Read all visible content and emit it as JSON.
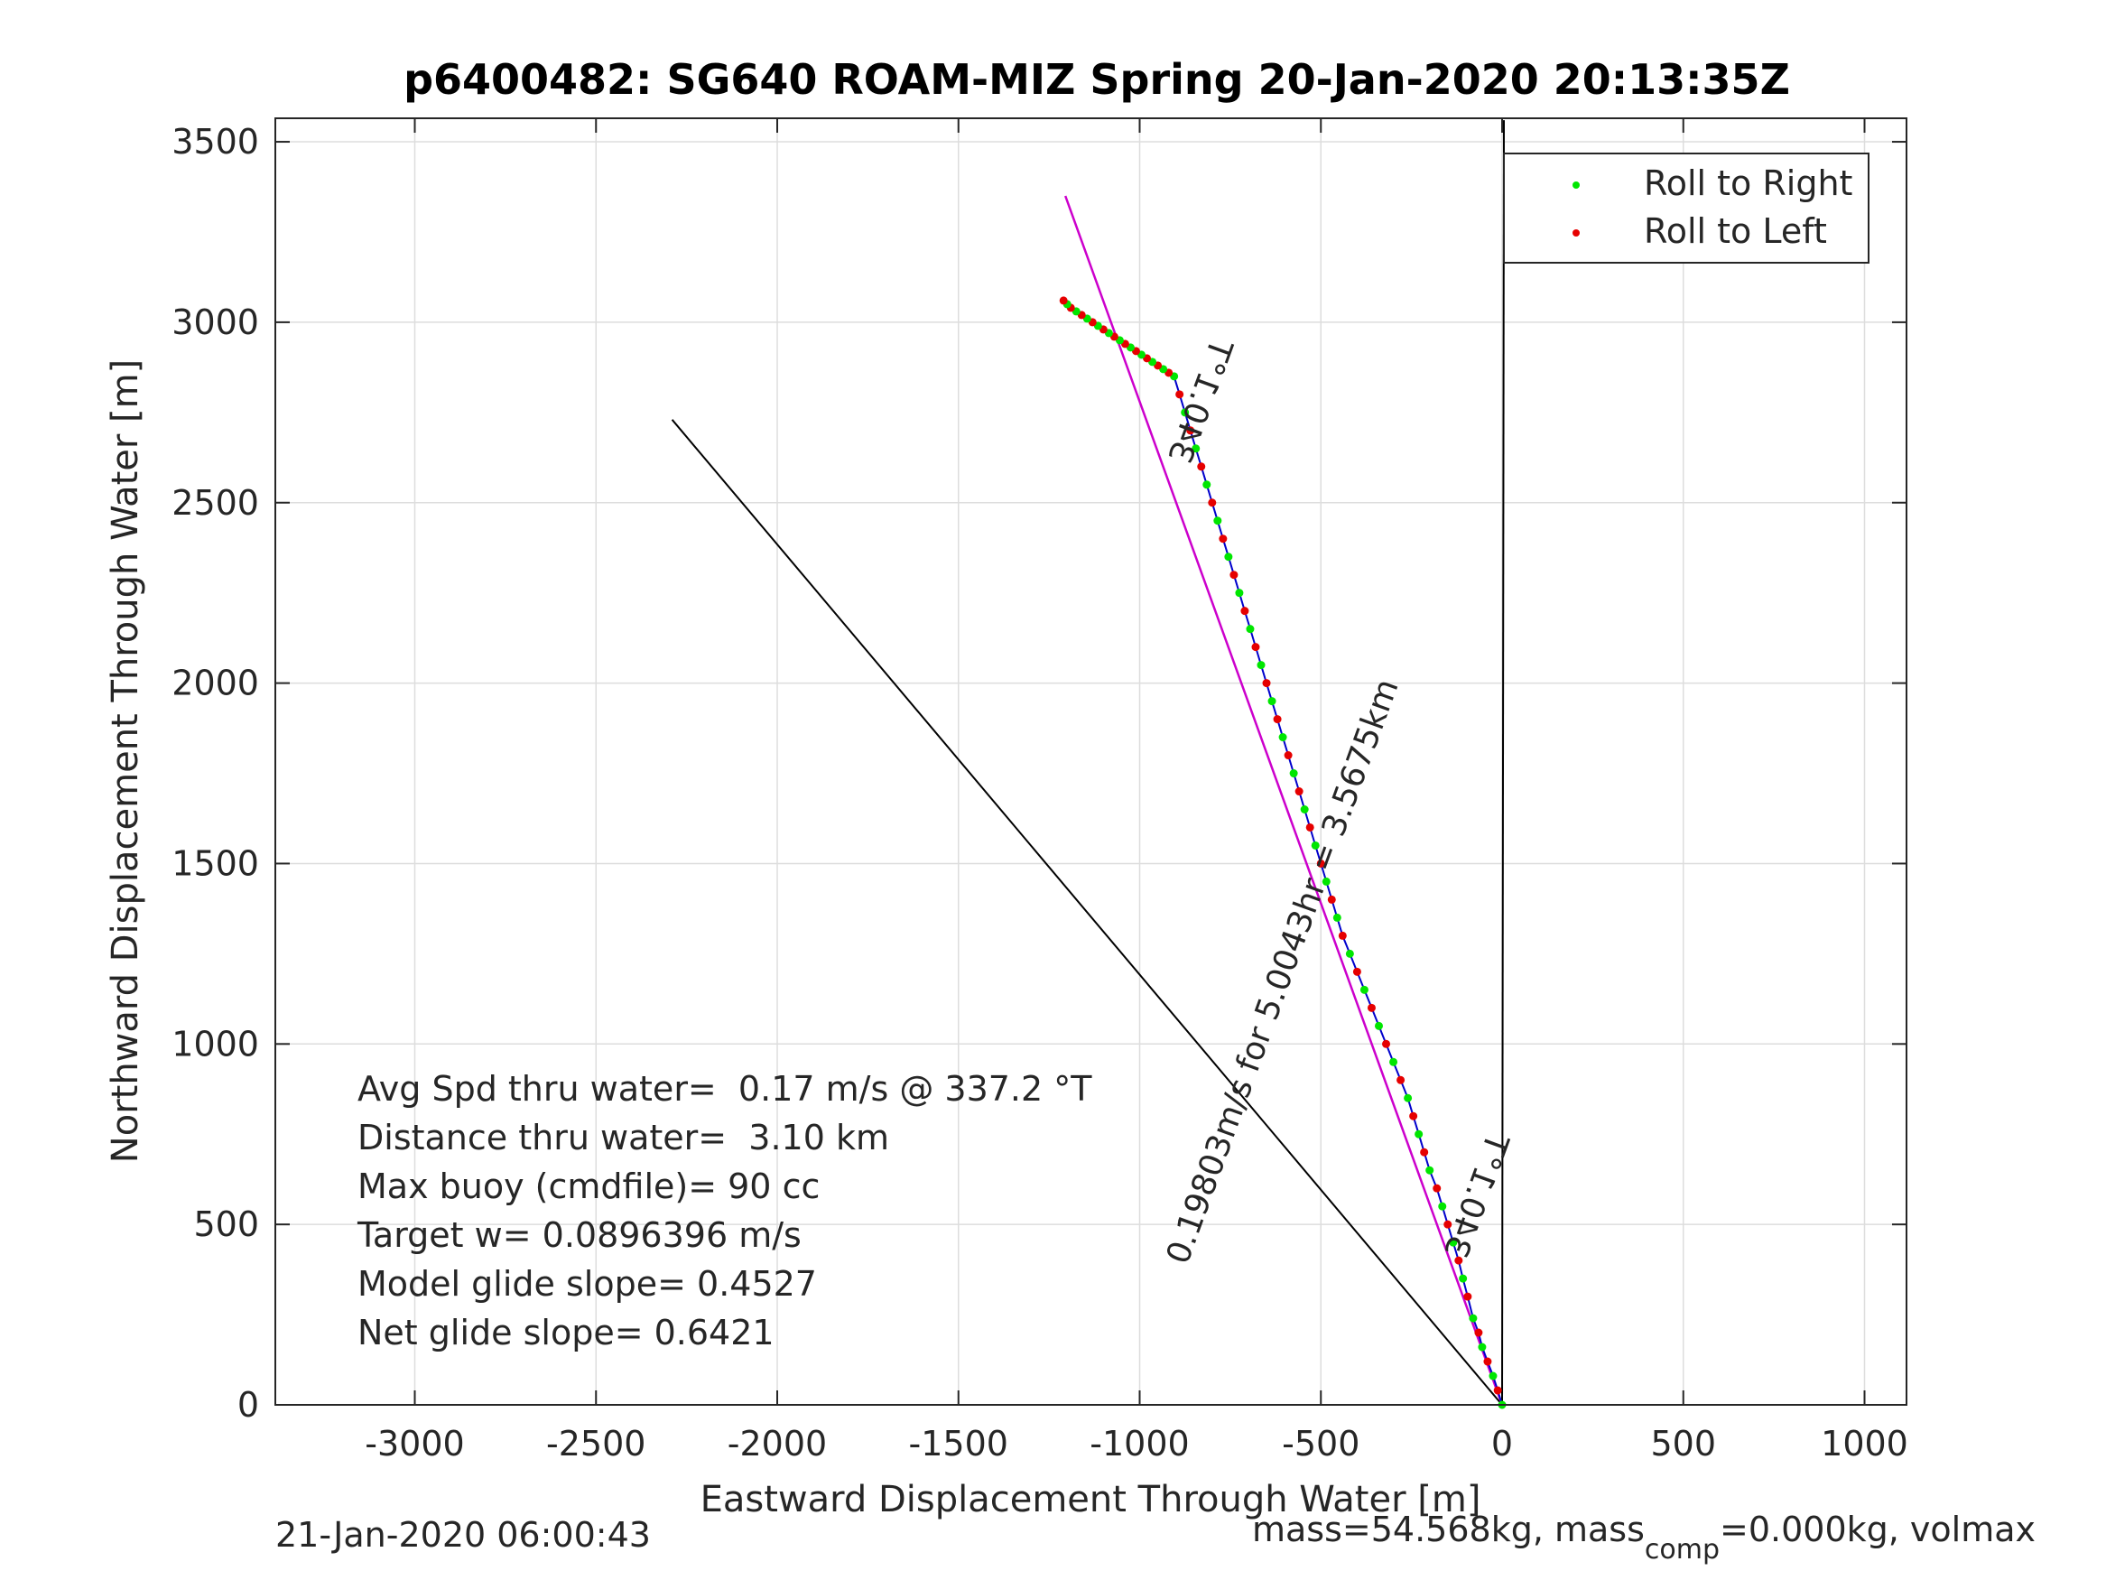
{
  "chart_data": {
    "type": "line",
    "title": "p6400482: SG640 ROAM-MIZ Spring 20-Jan-2020 20:13:35Z",
    "xlabel": "Eastward Displacement Through Water [m]",
    "ylabel": "Northward Displacement Through Water [m]",
    "xlim": [
      -3400,
      1120
    ],
    "ylim": [
      0,
      3560
    ],
    "xticks": [
      -3000,
      -2500,
      -2000,
      -1500,
      -1000,
      -500,
      0,
      500,
      1000
    ],
    "yticks": [
      0,
      500,
      1000,
      1500,
      2000,
      2500,
      3000,
      3500
    ],
    "xtick_labels": [
      "-3000",
      "-2500",
      "-2000",
      "-1500",
      "-1000",
      "-500",
      "0",
      "500",
      "1000"
    ],
    "ytick_labels": [
      "0",
      "500",
      "1000",
      "1500",
      "2000",
      "2500",
      "3000",
      "3500"
    ],
    "grid": true,
    "legend": {
      "placement": "top-right",
      "entries": [
        {
          "label": "Roll to Right",
          "color": "#00e600"
        },
        {
          "label": "Roll to Left",
          "color": "#e60000"
        }
      ]
    },
    "colors": {
      "track": "#0000cc",
      "heading_line": "#cc00cc",
      "reference_lines": "#000000"
    },
    "track": {
      "x": [
        0,
        -12,
        -25,
        -40,
        -55,
        -65,
        -80,
        -95,
        -108,
        -120,
        -135,
        -150,
        -165,
        -180,
        -200,
        -215,
        -230,
        -245,
        -260,
        -280,
        -300,
        -320,
        -340,
        -360,
        -380,
        -400,
        -420,
        -440,
        -455,
        -470,
        -485,
        -500,
        -515,
        -530,
        -545,
        -560,
        -575,
        -590,
        -605,
        -620,
        -635,
        -650,
        -665,
        -680,
        -695,
        -710,
        -725,
        -740,
        -755,
        -770,
        -785,
        -800,
        -815,
        -830,
        -845,
        -860,
        -875,
        -890,
        -905,
        -920,
        -935,
        -950,
        -965,
        -980,
        -995,
        -1010,
        -1025,
        -1040,
        -1055,
        -1070,
        -1085,
        -1100,
        -1115,
        -1130,
        -1145,
        -1160,
        -1175,
        -1190,
        -1200,
        -1210
      ],
      "y": [
        0,
        40,
        80,
        120,
        160,
        200,
        240,
        300,
        350,
        400,
        450,
        500,
        550,
        600,
        650,
        700,
        750,
        800,
        850,
        900,
        950,
        1000,
        1050,
        1100,
        1150,
        1200,
        1250,
        1300,
        1350,
        1400,
        1450,
        1500,
        1550,
        1600,
        1650,
        1700,
        1750,
        1800,
        1850,
        1900,
        1950,
        2000,
        2050,
        2100,
        2150,
        2200,
        2250,
        2300,
        2350,
        2400,
        2450,
        2500,
        2550,
        2600,
        2650,
        2700,
        2750,
        2800,
        2850,
        2860,
        2870,
        2880,
        2890,
        2900,
        2910,
        2920,
        2930,
        2940,
        2950,
        2960,
        2970,
        2980,
        2990,
        3000,
        3010,
        3020,
        3030,
        3040,
        3050,
        3060
      ]
    },
    "heading_line": {
      "x": [
        0,
        -1205
      ],
      "y": [
        0,
        3350
      ]
    },
    "reference_lines": [
      {
        "x": [
          0,
          -2290
        ],
        "y": [
          0,
          2730
        ]
      },
      {
        "x": [
          0,
          5
        ],
        "y": [
          0,
          3560
        ]
      }
    ],
    "annotations": [
      {
        "text": "340.1°T",
        "x": -860,
        "y": 2880
      },
      {
        "text": "340.1°T",
        "x": -110,
        "y": 720
      },
      {
        "text": "0.19803m/s for 5.0043hr = 3.5675km",
        "x": -470,
        "y": 1100
      }
    ],
    "stats": [
      "Avg Spd thru water=  0.17 m/s @ 337.2 °T",
      "Distance thru water=  3.10 km",
      "Max buoy (cmdfile)= 90 cc",
      "Target w= 0.0896396 m/s",
      "Model glide slope= 0.4527",
      "Net glide slope= 0.6421"
    ]
  },
  "footer": {
    "timestamp": "21-Jan-2020 06:00:43",
    "mass_prefix": "mass=54.568kg, mass",
    "mass_sub": "comp",
    "mass_suffix": "=0.000kg, volmax"
  }
}
